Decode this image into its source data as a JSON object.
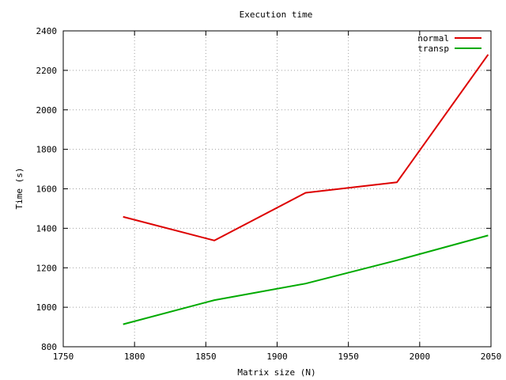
{
  "chart_data": {
    "type": "line",
    "title": "Execution time",
    "xlabel": "Matrix size (N)",
    "ylabel": "Time (s)",
    "xlim": [
      1750,
      2050
    ],
    "ylim": [
      800,
      2400
    ],
    "xticks": [
      1750,
      1800,
      1850,
      1900,
      1950,
      2000,
      2050
    ],
    "yticks": [
      800,
      1000,
      1200,
      1400,
      1600,
      1800,
      2000,
      2200,
      2400
    ],
    "grid": true,
    "legend_position": "top-right",
    "series": [
      {
        "name": "normal",
        "color": "#dd0000",
        "x": [
          1792,
          1856,
          1920,
          1984,
          2048
        ],
        "y": [
          1458,
          1338,
          1580,
          1633,
          2280
        ]
      },
      {
        "name": "transp",
        "color": "#00aa00",
        "x": [
          1792,
          1856,
          1920,
          1984,
          2048
        ],
        "y": [
          914,
          1036,
          1120,
          1238,
          1364
        ]
      }
    ]
  }
}
